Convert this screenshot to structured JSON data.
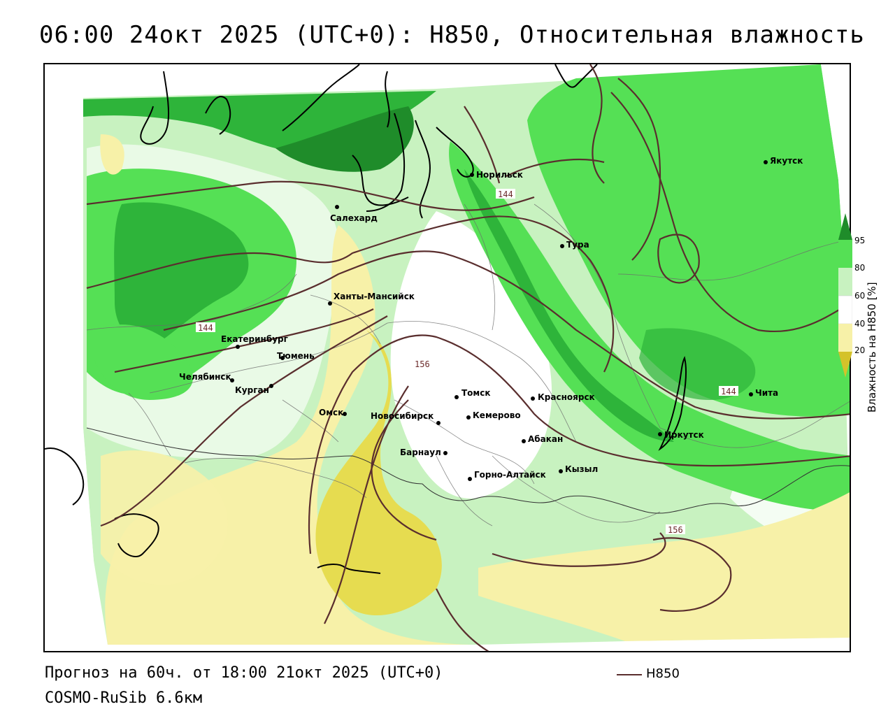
{
  "title": "06:00 24окт 2025 (UTC+0): H850, Относительная влажность",
  "footer": {
    "forecast": "Прогноз на 60ч. от 18:00 21окт 2025 (UTC+0)",
    "model": "COSMO-RuSib 6.6км",
    "legend_line_label": "H850"
  },
  "colorbar": {
    "title": "Влажность на H850 [%]",
    "ticks": [
      "95",
      "80",
      "60",
      "40",
      "20"
    ],
    "colors": {
      "very_dry": "#d4c22a",
      "dry": "#e6dc50",
      "semi_dry": "#f7f1a8",
      "neutral": "#ffffff",
      "moist": "#c8f2c0",
      "wet": "#55e055",
      "very_wet": "#2eb43a",
      "saturated": "#1f8c2a"
    }
  },
  "contour_labels": [
    "144",
    "144",
    "144",
    "156",
    "156"
  ],
  "cities": [
    {
      "name": "Салехард"
    },
    {
      "name": "Норильск"
    },
    {
      "name": "Якутск"
    },
    {
      "name": "Тура"
    },
    {
      "name": "Ханты-Мансийск"
    },
    {
      "name": "Екатеринбург"
    },
    {
      "name": "Тюмень"
    },
    {
      "name": "Челябинск"
    },
    {
      "name": "Курган"
    },
    {
      "name": "Омск"
    },
    {
      "name": "Новосибирск"
    },
    {
      "name": "Томск"
    },
    {
      "name": "Кемерово"
    },
    {
      "name": "Красноярск"
    },
    {
      "name": "Абакан"
    },
    {
      "name": "Барнаул"
    },
    {
      "name": "Горно-Алтайск"
    },
    {
      "name": "Кызыл"
    },
    {
      "name": "Иркутск"
    },
    {
      "name": "Чита"
    }
  ]
}
